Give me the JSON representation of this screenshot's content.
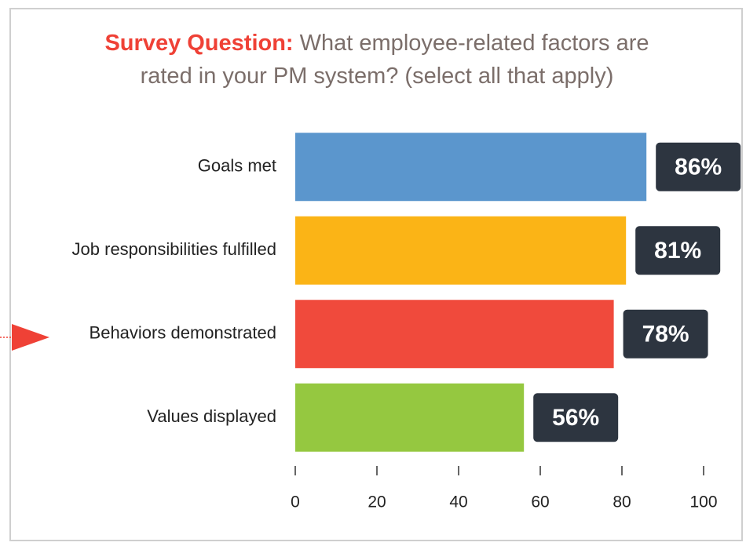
{
  "chart_data": {
    "type": "barh",
    "title": {
      "label": "Survey Question:",
      "text": "What employee-related factors are rated in your PM system? (select all that apply)"
    },
    "categories": [
      "Goals met",
      "Job responsibilities fulfilled",
      "Behaviors demonstrated",
      "Values displayed"
    ],
    "values": [
      86,
      81,
      78,
      56
    ],
    "value_labels": [
      "86%",
      "81%",
      "78%",
      "56%"
    ],
    "colors": [
      "#5b96cd",
      "#fbb416",
      "#f04a3c",
      "#95c840"
    ],
    "xlim": [
      0,
      100
    ],
    "xticks": [
      0,
      20,
      40,
      60,
      80,
      100
    ],
    "grid": false
  }
}
